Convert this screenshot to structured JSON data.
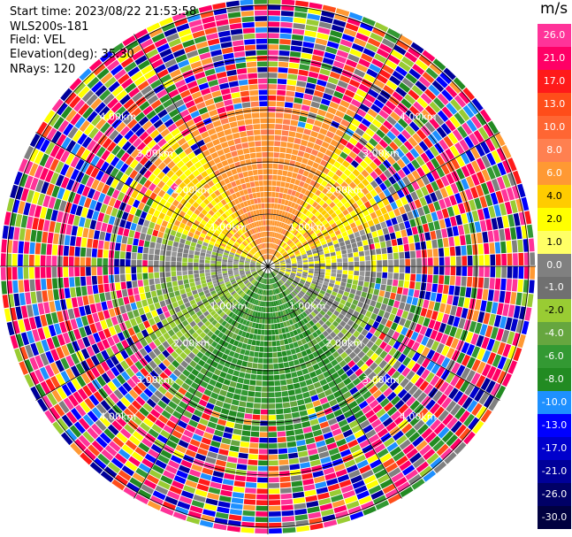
{
  "info": {
    "start_time": "Start time: 2023/08/22 21:53:58",
    "instrument": "WLS200s-181",
    "field": "Field: VEL",
    "elevation": "Elevation(deg): 35.30",
    "nrays": "NRays: 120"
  },
  "colorbar": {
    "title": "m/s",
    "ticks": [
      "26.0",
      "21.0",
      "17.0",
      "13.0",
      "10.0",
      "8.0",
      "6.0",
      "4.0",
      "2.0",
      "1.0",
      "0.0",
      "-1.0",
      "-2.0",
      "-4.0",
      "-6.0",
      "-8.0",
      "-10.0",
      "-13.0",
      "-17.0",
      "-21.0",
      "-26.0",
      "-30.0"
    ],
    "colors": [
      "#ff3399",
      "#ff0066",
      "#ff1a1a",
      "#ff4d1a",
      "#ff6633",
      "#ff8050",
      "#ff9933",
      "#ffcc00",
      "#ffff00",
      "#ffff66",
      "#808080",
      "#707070",
      "#99cc33",
      "#66a63f",
      "#339933",
      "#228b22",
      "#1e90ff",
      "#0000ff",
      "#0000cc",
      "#000099",
      "#000066",
      "#000040"
    ],
    "text_colors_light": [
      true,
      true,
      true,
      true,
      true,
      true,
      true,
      false,
      false,
      false,
      true,
      true,
      false,
      true,
      true,
      true,
      true,
      true,
      true,
      true,
      true,
      true
    ]
  },
  "chart_data": {
    "type": "heatmap",
    "projection": "polar PPI",
    "field": "VEL",
    "units": "m/s",
    "nrays": 120,
    "range_rings_km": [
      1.0,
      2.0,
      3.0,
      4.0
    ],
    "ring_labels": [
      "1.00km",
      "2.00km",
      "3.00km",
      "4.00km"
    ],
    "color_scale": [
      -30,
      -26,
      -21,
      -17,
      -13,
      -10,
      -8,
      -6,
      -4,
      -2,
      -1,
      0,
      1,
      2,
      4,
      6,
      8,
      10,
      13,
      17,
      21,
      26
    ],
    "velocity_by_sector_inner": [
      {
        "direction": "north",
        "value": 6.0
      },
      {
        "direction": "north-east",
        "value": 3.0
      },
      {
        "direction": "east",
        "value": 0.0
      },
      {
        "direction": "south-east",
        "value": -5.0
      },
      {
        "direction": "south",
        "value": -6.0
      },
      {
        "direction": "south-west",
        "value": -3.0
      },
      {
        "direction": "west",
        "value": 0.0
      },
      {
        "direction": "north-west",
        "value": 3.0
      }
    ],
    "outer_region": "noise"
  }
}
